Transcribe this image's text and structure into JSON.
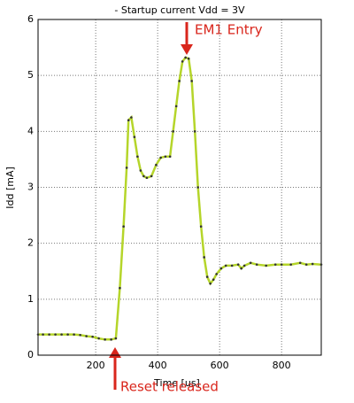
{
  "chart_data": {
    "type": "line",
    "title": "- Startup current Vdd = 3V",
    "x_label": "Time [us]",
    "y_label": "Idd [mA]",
    "x": [
      14,
      30,
      50,
      70,
      90,
      110,
      130,
      150,
      170,
      190,
      210,
      230,
      250,
      265,
      278,
      290,
      300,
      306,
      315,
      325,
      335,
      345,
      355,
      365,
      380,
      395,
      410,
      425,
      440,
      450,
      460,
      470,
      480,
      490,
      500,
      510,
      520,
      530,
      540,
      550,
      560,
      570,
      580,
      590,
      605,
      620,
      640,
      660,
      670,
      680,
      700,
      720,
      750,
      780,
      800,
      830,
      860,
      880,
      900,
      928
    ],
    "values": [
      0.37,
      0.37,
      0.37,
      0.37,
      0.37,
      0.37,
      0.37,
      0.36,
      0.34,
      0.33,
      0.3,
      0.28,
      0.28,
      0.3,
      1.2,
      2.3,
      3.35,
      4.2,
      4.25,
      3.9,
      3.55,
      3.3,
      3.2,
      3.17,
      3.2,
      3.4,
      3.53,
      3.55,
      3.55,
      4.0,
      4.45,
      4.9,
      5.25,
      5.32,
      5.3,
      4.9,
      4.0,
      3.0,
      2.3,
      1.75,
      1.4,
      1.28,
      1.35,
      1.45,
      1.55,
      1.6,
      1.6,
      1.62,
      1.55,
      1.6,
      1.65,
      1.62,
      1.6,
      1.62,
      1.62,
      1.62,
      1.65,
      1.62,
      1.63,
      1.62
    ],
    "color": "#b5d52a",
    "xlim": [
      14,
      928
    ],
    "ylim": [
      0,
      6
    ],
    "xticks": [
      200,
      400,
      600,
      800
    ],
    "yticks": [
      0,
      1,
      2,
      3,
      4,
      5,
      6
    ],
    "grid": true,
    "annotations": [
      {
        "text": "EM1 Entry"
      },
      {
        "text": "Reset released"
      }
    ]
  }
}
